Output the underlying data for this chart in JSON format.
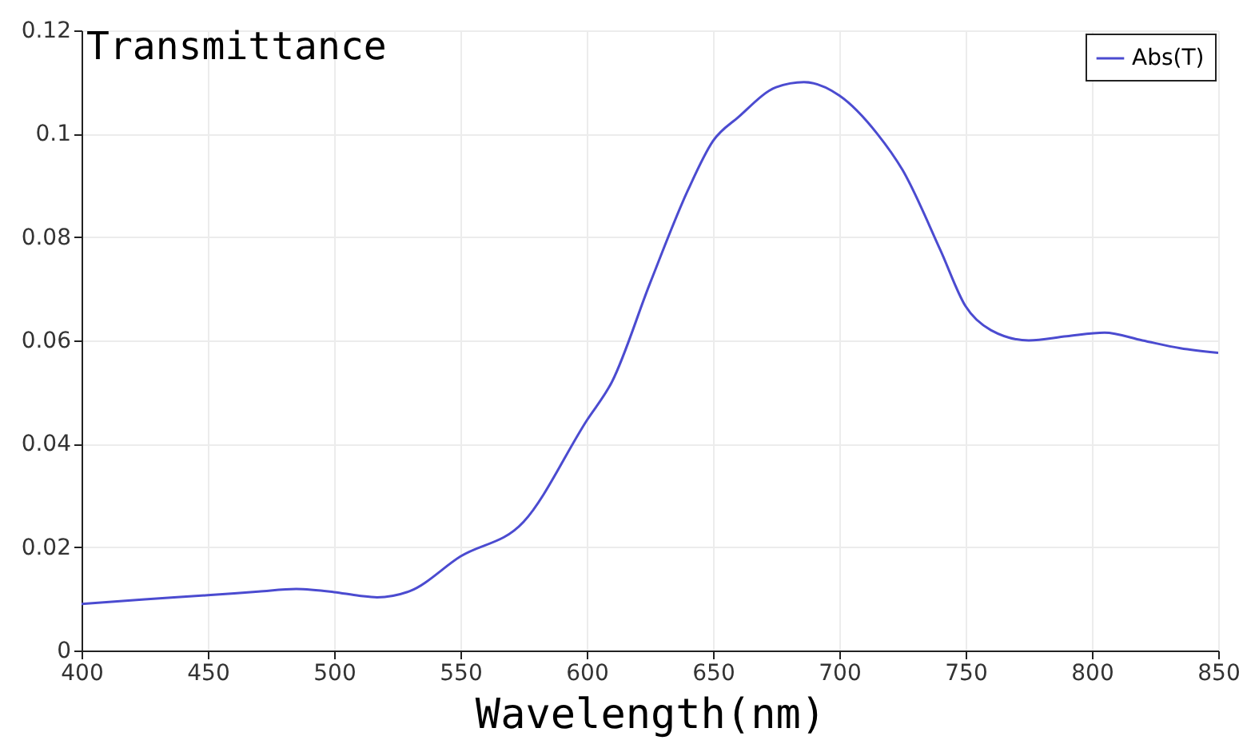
{
  "chart_data": {
    "type": "line",
    "title": "Transmittance",
    "xlabel": "Wavelength(nm)",
    "x": [
      400,
      425,
      450,
      470,
      485,
      500,
      510,
      517,
      530,
      550,
      575,
      600,
      610,
      625,
      640,
      650,
      660,
      675,
      686,
      700,
      715,
      725,
      740,
      750,
      760,
      775,
      790,
      805,
      820,
      835,
      850
    ],
    "series": [
      {
        "name": "Abs(T)",
        "color": "#4b4bd0",
        "values": [
          0.009,
          0.0099,
          0.0107,
          0.0114,
          0.0119,
          0.0113,
          0.0106,
          0.0103,
          0.0115,
          0.0182,
          0.0249,
          0.0445,
          0.052,
          0.071,
          0.089,
          0.0986,
          0.1032,
          0.109,
          0.11,
          0.1074,
          0.1,
          0.093,
          0.0775,
          0.0666,
          0.062,
          0.06,
          0.0608,
          0.0615,
          0.06,
          0.0585,
          0.0576
        ]
      }
    ],
    "xlim": [
      400,
      850
    ],
    "xticks": [
      400,
      450,
      500,
      550,
      600,
      650,
      700,
      750,
      800,
      850
    ],
    "ylim": [
      0,
      0.12
    ],
    "yticks": [
      0,
      0.02,
      0.04,
      0.06,
      0.08,
      0.1,
      0.12
    ],
    "grid": true,
    "legend": "top right",
    "marker": "none",
    "line_style": "solid"
  }
}
